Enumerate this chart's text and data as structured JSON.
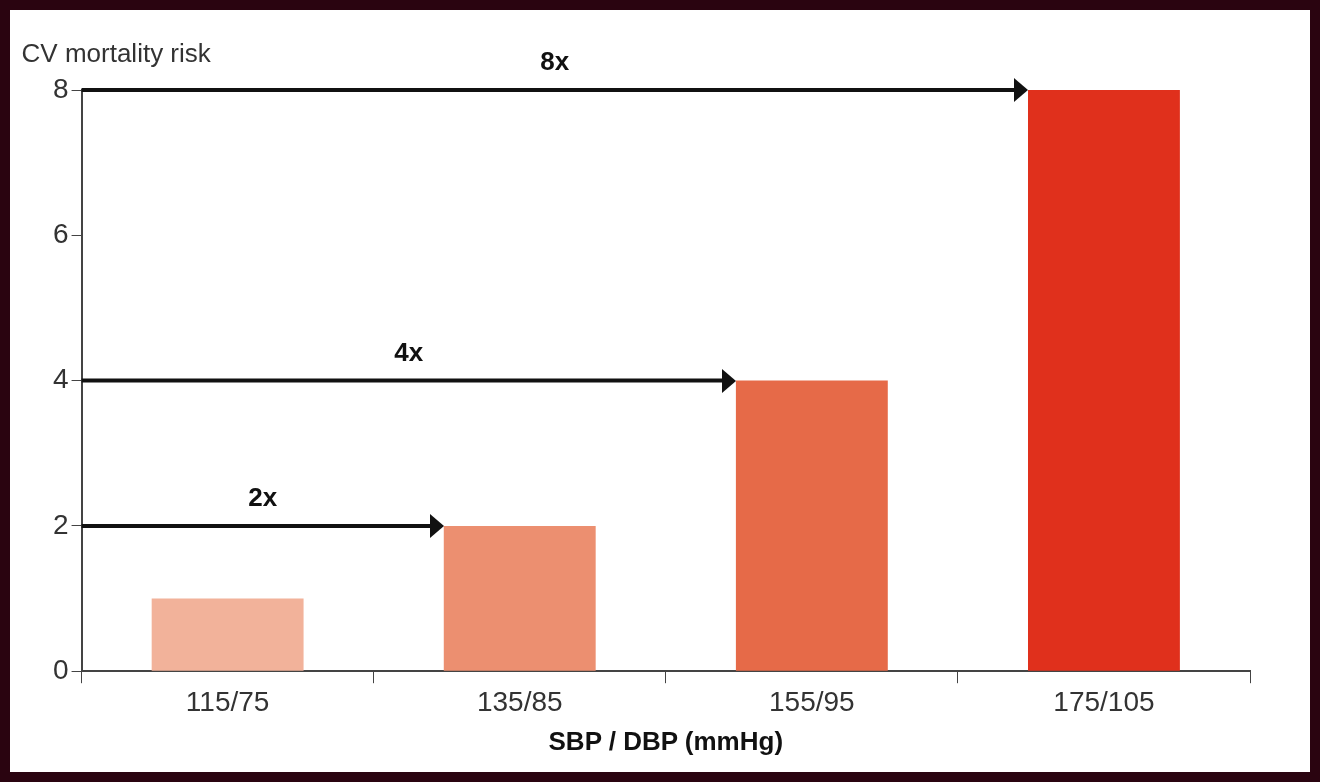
{
  "chart_data": {
    "type": "bar",
    "ylabel": "CV mortality risk",
    "xlabel": "SBP / DBP (mmHg)",
    "categories": [
      "115/75",
      "135/85",
      "155/95",
      "175/105"
    ],
    "values": [
      1,
      2,
      4,
      8
    ],
    "colors": [
      "#f2b29a",
      "#ec8f70",
      "#e66a48",
      "#e0301c"
    ],
    "ylim": [
      0,
      8
    ],
    "yticks": [
      0,
      2,
      4,
      6,
      8
    ],
    "grid": false,
    "legend": false,
    "ref_lines": [
      {
        "axis": "y",
        "value": 2,
        "label": "2x",
        "color": "#111111"
      },
      {
        "axis": "y",
        "value": 4,
        "label": "4x",
        "color": "#111111"
      },
      {
        "axis": "y",
        "value": 8,
        "label": "8x",
        "color": "#111111"
      }
    ]
  }
}
